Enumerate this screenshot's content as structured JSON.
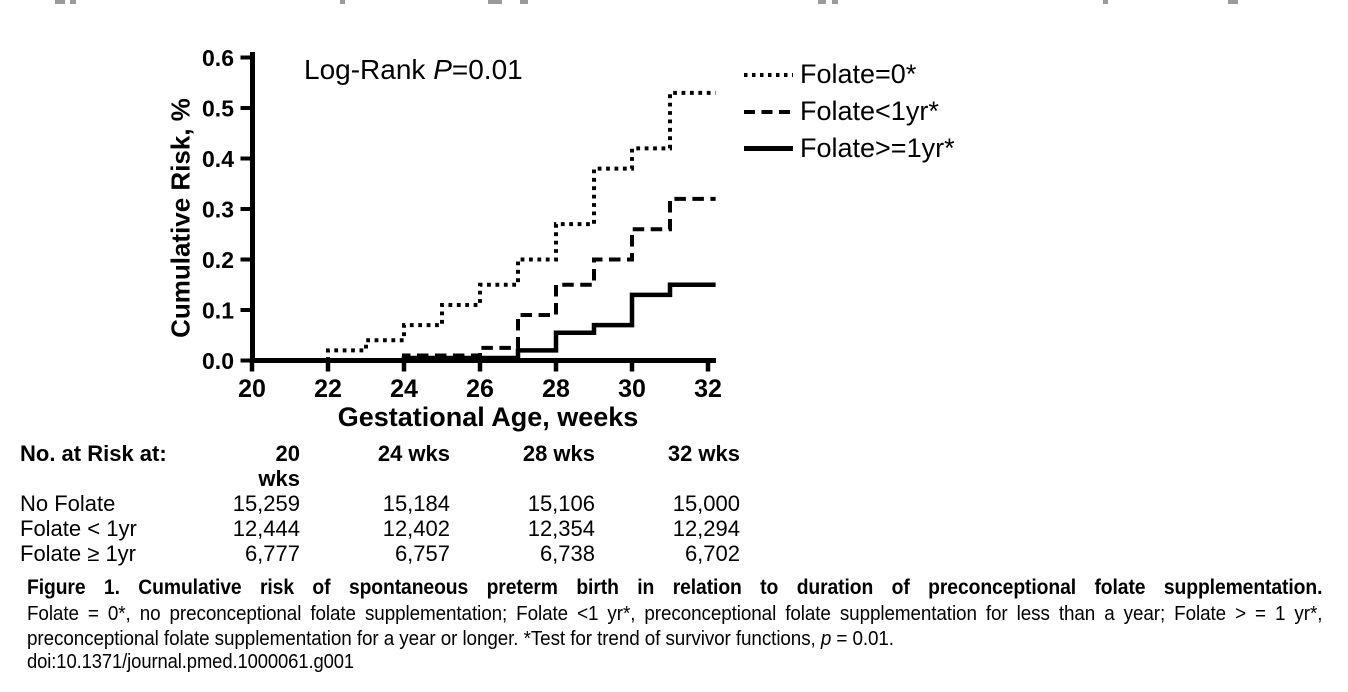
{
  "chart_data": {
    "type": "line",
    "subtype": "step-cumulative-risk",
    "title": "",
    "xlabel": "Gestational Age, weeks",
    "ylabel": "Cumulative Risk, %",
    "xlim": [
      20,
      32
    ],
    "ylim": [
      0,
      0.6
    ],
    "xticks": [
      20,
      22,
      24,
      26,
      28,
      30,
      32
    ],
    "yticks": [
      "0.0",
      "0.1",
      "0.2",
      "0.3",
      "0.4",
      "0.5",
      "0.6"
    ],
    "grid": false,
    "legend_position": "top-right",
    "annotation": {
      "pre": "Log-Rank ",
      "italic": "P",
      "post": "=0.01"
    },
    "end_week": 32.2,
    "series": [
      {
        "id": "folate-0",
        "name": "Folate=0*",
        "line_style": "dotted",
        "rises_from_axis": false,
        "points": [
          [
            20,
            0
          ],
          [
            22,
            0.02
          ],
          [
            23,
            0.04
          ],
          [
            24,
            0.07
          ],
          [
            25,
            0.11
          ],
          [
            26,
            0.15
          ],
          [
            27,
            0.2
          ],
          [
            28,
            0.27
          ],
          [
            29,
            0.38
          ],
          [
            30,
            0.42
          ],
          [
            31,
            0.53
          ]
        ]
      },
      {
        "id": "folate-lt-1yr",
        "name": "Folate<1yr*",
        "line_style": "dashed",
        "rises_from_axis": true,
        "points": [
          [
            24,
            0.01
          ],
          [
            26,
            0.025
          ],
          [
            27,
            0.09
          ],
          [
            28,
            0.15
          ],
          [
            29,
            0.2
          ],
          [
            30,
            0.26
          ],
          [
            31,
            0.32
          ]
        ]
      },
      {
        "id": "folate-ge-1yr",
        "name": "Folate>=1yr*",
        "line_style": "solid",
        "rises_from_axis": true,
        "points": [
          [
            24,
            0.005
          ],
          [
            27,
            0.02
          ],
          [
            28,
            0.055
          ],
          [
            29,
            0.07
          ],
          [
            30,
            0.13
          ],
          [
            31,
            0.15
          ]
        ]
      }
    ]
  },
  "risk_table": {
    "header": {
      "label": "No. at Risk at:",
      "cols": [
        "20 wks",
        "24 wks",
        "28 wks",
        "32 wks"
      ]
    },
    "rows": [
      {
        "label": "No Folate",
        "values": [
          "15,259",
          "15,184",
          "15,106",
          "15,000"
        ]
      },
      {
        "label": "Folate < 1yr",
        "values": [
          "12,444",
          "12,402",
          "12,354",
          "12,294"
        ]
      },
      {
        "label": "Folate ≥ 1yr",
        "values": [
          "6,777",
          "6,757",
          "6,738",
          "6,702"
        ]
      }
    ]
  },
  "caption": {
    "line1_bold": "Figure 1. Cumulative risk of spontaneous preterm birth in relation to duration of preconceptional folate supplementation.",
    "line2": "Folate = 0*, no preconceptional folate supplementation; Folate <1 yr*, preconceptional folate supplementation for less than a year; Folate > = 1 yr*,",
    "line3_pre": "preconceptional folate supplementation for a year or longer. *Test for trend of survivor functions, ",
    "line3_italic": "p",
    "line3_post": " = 0.01.",
    "line4_doi": "doi:10.1371/journal.pmed.1000061.g001"
  },
  "artifacts": {
    "top_cropped_text_fragments": [
      [
        55,
        10
      ],
      [
        70,
        6
      ],
      [
        340,
        5
      ],
      [
        488,
        14
      ],
      [
        520,
        8
      ],
      [
        818,
        8
      ],
      [
        832,
        6
      ],
      [
        1103,
        5
      ],
      [
        1228,
        10
      ]
    ]
  }
}
